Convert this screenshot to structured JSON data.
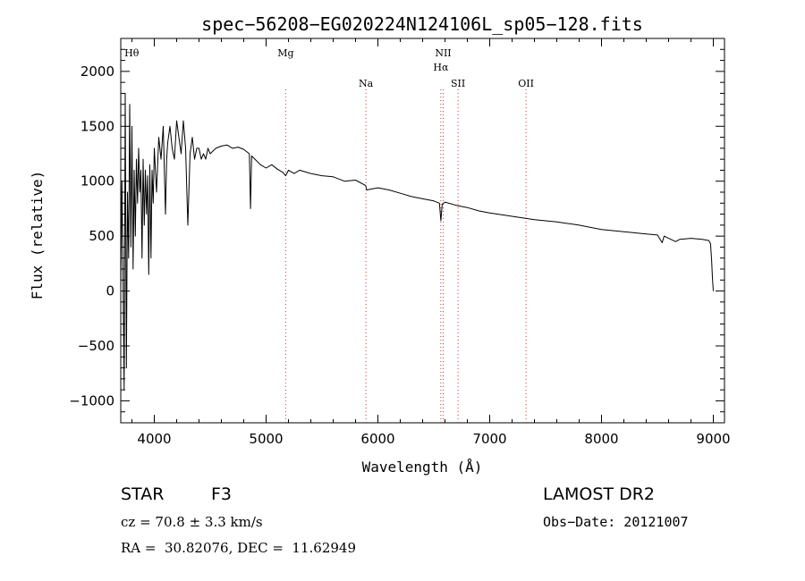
{
  "chart_data": {
    "type": "line",
    "title": "spec−56208−EG020224N124106L_sp05−128.fits",
    "xlabel": "Wavelength (Å)",
    "ylabel": "Flux (relative)",
    "xlim": [
      3700,
      9100
    ],
    "ylim": [
      -1200,
      2300
    ],
    "xticks": [
      4000,
      5000,
      6000,
      7000,
      8000,
      9000
    ],
    "yticks": [
      -1000,
      -500,
      0,
      500,
      1000,
      1500,
      2000
    ],
    "ytick_labels": [
      "−1000",
      "−500",
      "0",
      "500",
      "1000",
      "1500",
      "2000"
    ],
    "grid": false,
    "series": [
      {
        "x": [
          3700,
          3710,
          3720,
          3730,
          3740,
          3750,
          3760,
          3770,
          3780,
          3790,
          3800,
          3810,
          3820,
          3830,
          3840,
          3850,
          3860,
          3870,
          3880,
          3890,
          3900,
          3910,
          3920,
          3930,
          3940,
          3950,
          3960,
          3970,
          3980,
          3990,
          4000,
          4020,
          4040,
          4060,
          4080,
          4100,
          4110,
          4120,
          4140,
          4160,
          4180,
          4200,
          4220,
          4240,
          4260,
          4280,
          4300,
          4320,
          4340,
          4360,
          4380,
          4400,
          4420,
          4440,
          4460,
          4480,
          4500,
          4550,
          4600,
          4650,
          4700,
          4750,
          4800,
          4850,
          4861,
          4870,
          4900,
          4950,
          5000,
          5050,
          5100,
          5150,
          5175,
          5200,
          5250,
          5300,
          5400,
          5500,
          5600,
          5700,
          5800,
          5890,
          5900,
          6000,
          6100,
          6200,
          6300,
          6400,
          6500,
          6550,
          6563,
          6575,
          6600,
          6700,
          6800,
          6900,
          7000,
          7200,
          7400,
          7600,
          7800,
          8000,
          8200,
          8400,
          8500,
          8542,
          8560,
          8600,
          8662,
          8700,
          8800,
          8900,
          8960,
          8975,
          8985,
          8992,
          9000
        ],
        "values": [
          0,
          1000,
          200,
          -900,
          1800,
          -700,
          900,
          300,
          1700,
          400,
          1500,
          200,
          1100,
          500,
          1200,
          800,
          1300,
          900,
          1100,
          300,
          1200,
          600,
          1100,
          700,
          1050,
          150,
          1150,
          300,
          1100,
          800,
          1300,
          900,
          1400,
          1200,
          1500,
          700,
          1200,
          1350,
          1500,
          1300,
          1200,
          1550,
          1400,
          1250,
          1550,
          1300,
          600,
          1250,
          1400,
          1200,
          1300,
          1300,
          1200,
          1250,
          1200,
          1300,
          1250,
          1300,
          1320,
          1330,
          1300,
          1310,
          1290,
          1250,
          750,
          1230,
          1200,
          1150,
          1120,
          1150,
          1110,
          1080,
          1050,
          1100,
          1070,
          1100,
          1070,
          1050,
          1040,
          1000,
          1010,
          960,
          920,
          940,
          920,
          890,
          860,
          840,
          820,
          800,
          640,
          790,
          810,
          780,
          760,
          730,
          710,
          680,
          650,
          630,
          600,
          560,
          540,
          520,
          510,
          440,
          500,
          480,
          450,
          470,
          480,
          470,
          460,
          430,
          280,
          120,
          0
        ]
      }
    ],
    "annotations": [
      {
        "label": "Hθ",
        "x": 3798,
        "dotted_line": false,
        "row": "top"
      },
      {
        "label": "Mg",
        "x": 5175,
        "dotted_line": true,
        "row": "top"
      },
      {
        "label": "Na",
        "x": 5893,
        "dotted_line": true,
        "row": "bottom"
      },
      {
        "label": "NII",
        "x": 6584,
        "dotted_line": true,
        "row": "top"
      },
      {
        "label": "Hα",
        "x": 6563,
        "dotted_line": true,
        "row": "mid"
      },
      {
        "label": "SII",
        "x": 6717,
        "dotted_line": true,
        "row": "bottom"
      },
      {
        "label": "OII",
        "x": 7325,
        "dotted_line": true,
        "row": "bottom"
      }
    ],
    "line_marker_color": "#cc3333",
    "line_color": "#000000"
  },
  "info": {
    "object_class": "STAR",
    "subclass": "F3",
    "survey": "LAMOST DR2",
    "cz": "cz = 70.8 ± 3.3 km/s",
    "obs_date": "Obs−Date: 20121007",
    "coords": "RA =  30.82076, DEC =  11.62949"
  }
}
